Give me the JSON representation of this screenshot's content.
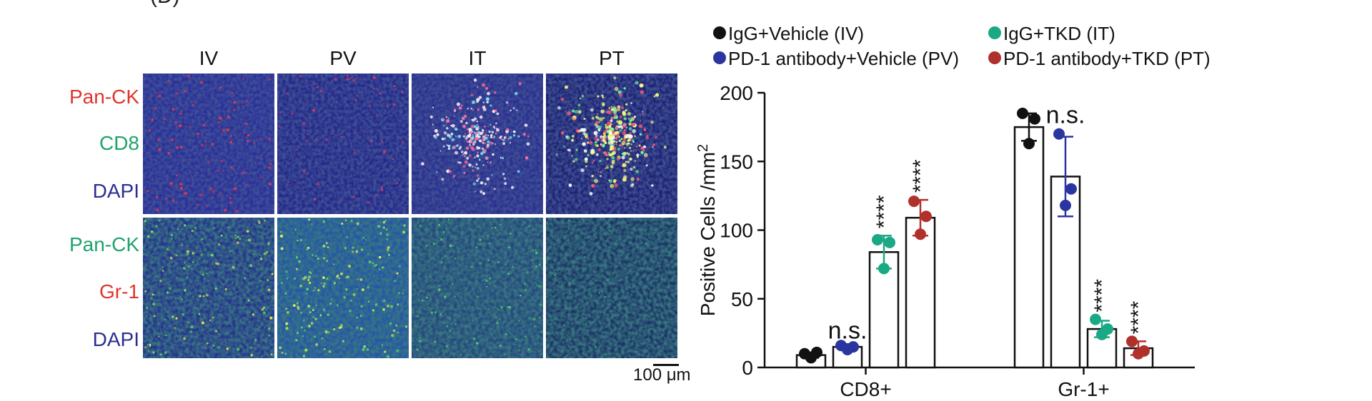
{
  "micrograph": {
    "panel_letter": "(D)",
    "columns": [
      "IV",
      "PV",
      "IT",
      "PT"
    ],
    "rows": [
      {
        "labels": [
          {
            "text": "Pan-CK",
            "color": "#e0342d"
          },
          {
            "text": "CD8",
            "color": "#1fa36b"
          },
          {
            "text": "DAPI",
            "color": "#2b2f8f"
          }
        ]
      },
      {
        "labels": [
          {
            "text": "Pan-CK",
            "color": "#1fa36b"
          },
          {
            "text": "Gr-1",
            "color": "#e0342d"
          },
          {
            "text": "DAPI",
            "color": "#2b2f8f"
          }
        ]
      }
    ],
    "scale_bar": "100 μm"
  },
  "chart_data": {
    "type": "bar",
    "categories": [
      "CD8+",
      "Gr-1+"
    ],
    "ylabel": "Positive Cells /mm",
    "ylabel_superscript": "2",
    "ylim": [
      0,
      200
    ],
    "yticks": [
      0,
      50,
      100,
      150,
      200
    ],
    "legend": "top",
    "series": [
      {
        "name": "IgG+Vehicle (IV)",
        "color": "#111111",
        "values": [
          9,
          175
        ],
        "sd": [
          2,
          10
        ],
        "points": [
          [
            10,
            11,
            7
          ],
          [
            185,
            181,
            163
          ]
        ],
        "annotations": [
          "",
          ""
        ]
      },
      {
        "name": "PD-1 antibody+Vehicle (PV)",
        "color": "#2b35a0",
        "values": [
          15,
          139
        ],
        "sd": [
          2,
          29
        ],
        "points": [
          [
            16,
            15,
            13
          ],
          [
            170,
            130,
            118
          ]
        ],
        "annotations": [
          "n.s.",
          "n.s."
        ]
      },
      {
        "name": "IgG+TKD (IT)",
        "color": "#1aa885",
        "values": [
          84,
          28
        ],
        "sd": [
          12,
          6
        ],
        "points": [
          [
            93,
            91,
            72
          ],
          [
            35,
            28,
            24
          ]
        ],
        "annotations": [
          "****",
          "****"
        ]
      },
      {
        "name": "PD-1 antibody+TKD (PT)",
        "color": "#b0302c",
        "values": [
          109,
          14
        ],
        "sd": [
          13,
          5
        ],
        "points": [
          [
            121,
            110,
            97
          ],
          [
            19,
            12,
            10
          ]
        ],
        "annotations": [
          "****",
          "****"
        ]
      }
    ]
  }
}
